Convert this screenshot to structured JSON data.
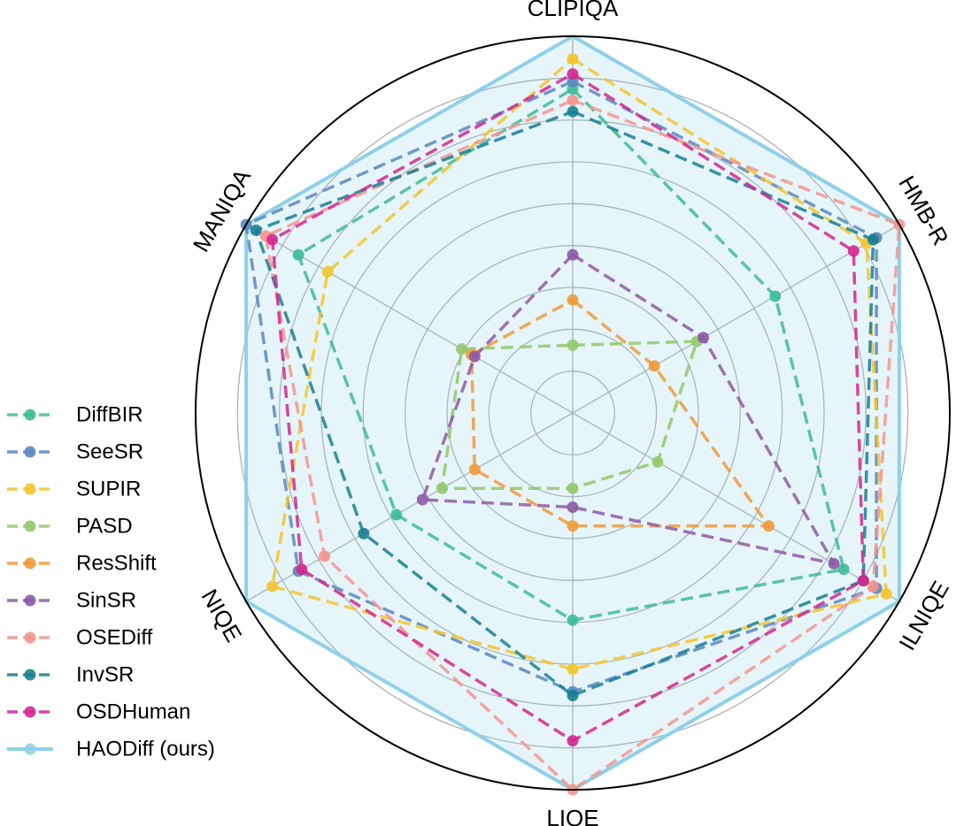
{
  "chart_data": {
    "type": "radar",
    "title": "",
    "axes": [
      "CLIPIQA",
      "HMB-R",
      "ILNIQE",
      "LIQE",
      "NIQE",
      "MANIQA"
    ],
    "rlim": [
      0,
      1
    ],
    "grid": true,
    "legend_position": "left",
    "series": [
      {
        "name": "DiffBIR",
        "color": "#3dbc95",
        "style": "dashed",
        "values": [
          0.86,
          0.62,
          0.83,
          0.55,
          0.54,
          0.84
        ]
      },
      {
        "name": "SeeSR",
        "color": "#5a87bd",
        "style": "dashed",
        "values": [
          0.88,
          0.93,
          0.93,
          0.74,
          0.84,
          1.0
        ]
      },
      {
        "name": "SUPIR",
        "color": "#f3c52e",
        "style": "dashed",
        "values": [
          0.94,
          0.9,
          0.96,
          0.68,
          0.92,
          0.75
        ]
      },
      {
        "name": "PASD",
        "color": "#92c96a",
        "style": "dashed",
        "values": [
          0.18,
          0.38,
          0.26,
          0.2,
          0.4,
          0.34
        ]
      },
      {
        "name": "ResShift",
        "color": "#ee9a3a",
        "style": "dashed",
        "values": [
          0.3,
          0.25,
          0.6,
          0.3,
          0.3,
          0.31
        ]
      },
      {
        "name": "SinSR",
        "color": "#8e5aa6",
        "style": "dashed",
        "values": [
          0.42,
          0.4,
          0.8,
          0.25,
          0.46,
          0.3
        ]
      },
      {
        "name": "OSEDiff",
        "color": "#f4958d",
        "style": "dashed",
        "values": [
          0.83,
          1.0,
          0.92,
          1.0,
          0.76,
          0.94
        ]
      },
      {
        "name": "InvSR",
        "color": "#197f94",
        "style": "dashed",
        "values": [
          0.8,
          0.92,
          0.89,
          0.75,
          0.64,
          0.97
        ]
      },
      {
        "name": "OSDHuman",
        "color": "#d4278f",
        "style": "dashed",
        "values": [
          0.9,
          0.86,
          0.89,
          0.87,
          0.83,
          0.92
        ]
      },
      {
        "name": "HAODiff (ours)",
        "color": "#8fd0ea",
        "style": "solid",
        "filled": true,
        "values": [
          1.0,
          1.0,
          1.0,
          1.0,
          1.0,
          1.0
        ]
      }
    ]
  }
}
